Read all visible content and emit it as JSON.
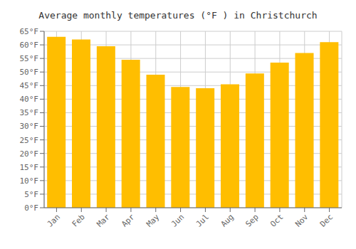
{
  "chart_data": {
    "type": "bar",
    "title": "Average monthly temperatures (°F ) in Christchurch",
    "categories": [
      "Jan",
      "Feb",
      "Mar",
      "Apr",
      "May",
      "Jun",
      "Jul",
      "Aug",
      "Sep",
      "Oct",
      "Nov",
      "Dec"
    ],
    "values": [
      63,
      62,
      59.5,
      54.5,
      49,
      44.5,
      44,
      45.5,
      49.5,
      53.5,
      57,
      61
    ],
    "color": "#FFBE00",
    "ylim": [
      0,
      65
    ],
    "yticks": [
      {
        "value": 0,
        "label": "0°F"
      },
      {
        "value": 5,
        "label": "5°F"
      },
      {
        "value": 10,
        "label": "10°F"
      },
      {
        "value": 15,
        "label": "15°F"
      },
      {
        "value": 20,
        "label": "20°F"
      },
      {
        "value": 25,
        "label": "25°F"
      },
      {
        "value": 30,
        "label": "30°F"
      },
      {
        "value": 35,
        "label": "35°F"
      },
      {
        "value": 40,
        "label": "40°F"
      },
      {
        "value": 45,
        "label": "45°F"
      },
      {
        "value": 50,
        "label": "50°F"
      },
      {
        "value": 55,
        "label": "55°F"
      },
      {
        "value": 60,
        "label": "60°F"
      },
      {
        "value": 65,
        "label": "65°F"
      }
    ],
    "grid": true
  }
}
